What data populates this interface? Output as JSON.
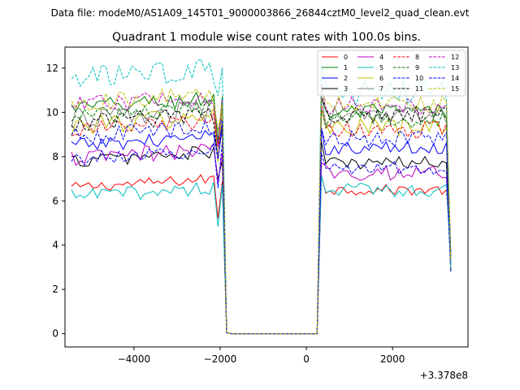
{
  "chart_data": {
    "type": "line",
    "suptitle": "Data file: modeM0/AS1A09_145T01_9000003866_26844cztM0_level2_quad_clean.evt",
    "title": "Quadrant 1 module wise count rates with 100.0s bins.",
    "xlabel": "",
    "ylabel": "",
    "xlim": [
      -5600,
      3750
    ],
    "ylim": [
      -0.6,
      12.95
    ],
    "x_offset_label": "+3.378e8",
    "x_ticks": [
      -4000,
      -2000,
      0,
      2000
    ],
    "x_tick_labels": [
      "−4000",
      "−2000",
      "0",
      "2000"
    ],
    "y_ticks": [
      0,
      2,
      4,
      6,
      8,
      10,
      12
    ],
    "y_tick_labels": [
      "0",
      "2",
      "4",
      "6",
      "8",
      "10",
      "12"
    ],
    "grid": false,
    "legend_position": "top-right",
    "legend_columns": 4,
    "segments": [
      {
        "start": -5450,
        "end": -2150,
        "step": 100
      },
      {
        "start": 350,
        "end": 3250,
        "step": 100
      }
    ],
    "transition": {
      "x_drop": [
        -2050,
        -1950,
        -1850
      ],
      "gap_start": -1850,
      "gap_end": 250
    },
    "series": [
      {
        "name": "0",
        "color": "#ff0000",
        "dash": "solid",
        "level_a": 6.6,
        "level_b": 6.5,
        "noise": 0.15
      },
      {
        "name": "1",
        "color": "#008000",
        "dash": "solid",
        "level_a": 10.2,
        "level_b": 10.0,
        "noise": 0.25
      },
      {
        "name": "2",
        "color": "#0000ff",
        "dash": "solid",
        "level_a": 8.5,
        "level_b": 8.4,
        "noise": 0.2
      },
      {
        "name": "3",
        "color": "#000000",
        "dash": "solid",
        "level_a": 7.8,
        "level_b": 7.7,
        "noise": 0.2
      },
      {
        "name": "4",
        "color": "#bf00bf",
        "dash": "solid",
        "level_a": 7.9,
        "level_b": 7.3,
        "noise": 0.25
      },
      {
        "name": "5",
        "color": "#00bfbf",
        "dash": "solid",
        "level_a": 6.2,
        "level_b": 6.5,
        "noise": 0.2
      },
      {
        "name": "6",
        "color": "#bfbf00",
        "dash": "solid",
        "level_a": 9.4,
        "level_b": 9.3,
        "noise": 0.3
      },
      {
        "name": "7",
        "color": "#808080",
        "dash": "solid",
        "level_a": 9.7,
        "level_b": 9.8,
        "noise": 0.3
      },
      {
        "name": "8",
        "color": "#ff0000",
        "dash": "dashed",
        "level_a": 9.2,
        "level_b": 9.2,
        "noise": 0.25
      },
      {
        "name": "9",
        "color": "#008000",
        "dash": "dashed",
        "level_a": 9.8,
        "level_b": 9.7,
        "noise": 0.25
      },
      {
        "name": "10",
        "color": "#0000ff",
        "dash": "dashed",
        "level_a": 7.9,
        "level_b": 7.5,
        "noise": 0.2
      },
      {
        "name": "11",
        "color": "#000000",
        "dash": "dashed",
        "level_a": 9.5,
        "level_b": 9.9,
        "noise": 0.25
      },
      {
        "name": "12",
        "color": "#bf00bf",
        "dash": "dashed",
        "level_a": 10.3,
        "level_b": 10.3,
        "noise": 0.25
      },
      {
        "name": "13",
        "color": "#00bfbf",
        "dash": "dashed",
        "level_a": 11.5,
        "level_b": 10.9,
        "noise": 0.35
      },
      {
        "name": "14",
        "color": "#0000ff",
        "dash": "dashed",
        "level_a": 8.9,
        "level_b": 8.8,
        "noise": 0.25
      },
      {
        "name": "15",
        "color": "#bfbf00",
        "dash": "dashed",
        "level_a": 10.4,
        "level_b": 10.4,
        "noise": 0.25
      }
    ]
  }
}
